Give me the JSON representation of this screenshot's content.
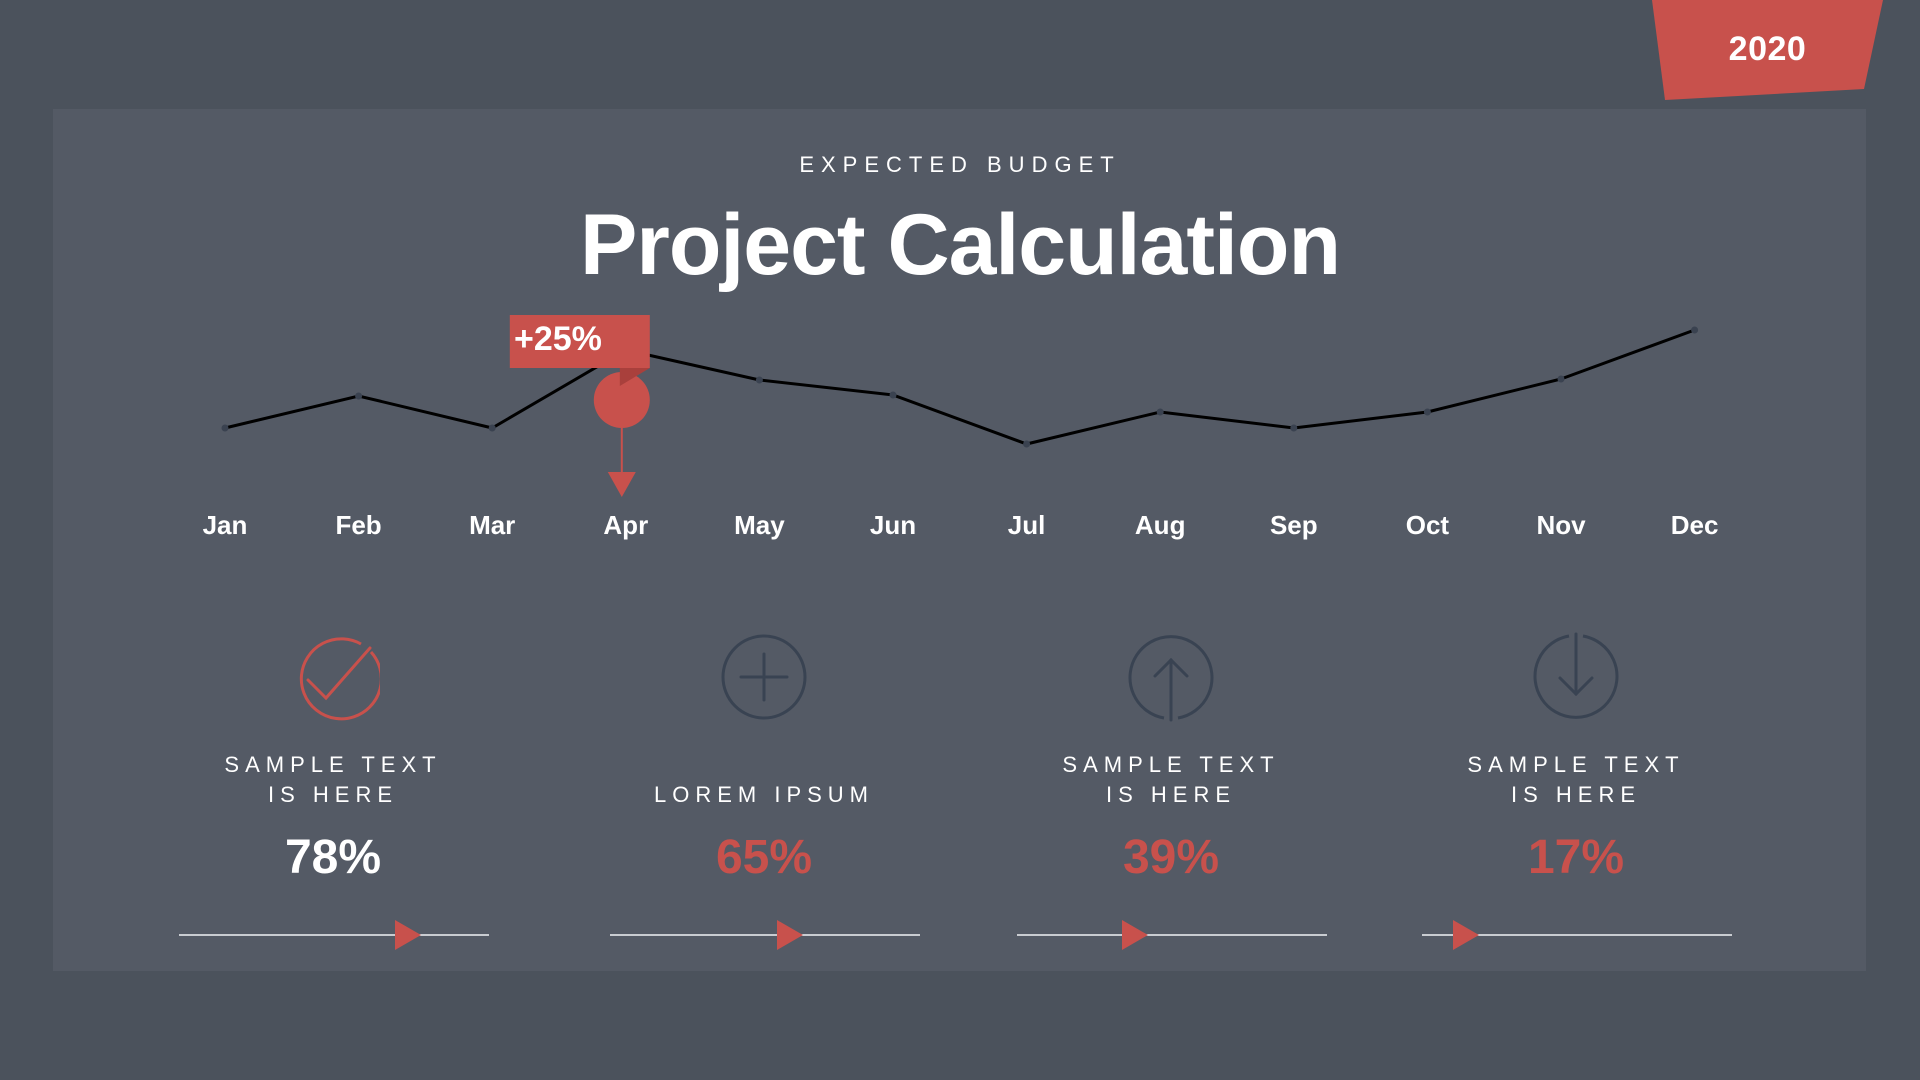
{
  "badge": {
    "year": "2020",
    "color": "#c8514c"
  },
  "header": {
    "subtitle": "EXPECTED BUDGET",
    "title": "Project Calculation"
  },
  "colors": {
    "background": "#4b525c",
    "panel": "#545a65",
    "accent": "#c8514c",
    "icon_stroke": "#394352",
    "line": "#000000",
    "text": "#ffffff"
  },
  "highlight": {
    "month": "Apr",
    "label": "+25%"
  },
  "months": [
    "Jan",
    "Feb",
    "Mar",
    "Apr",
    "May",
    "Jun",
    "Jul",
    "Aug",
    "Sep",
    "Oct",
    "Nov",
    "Dec"
  ],
  "cards": [
    {
      "icon": "check-circle-icon",
      "label_line1": "SAMPLE TEXT",
      "label_line2": "IS HERE",
      "value": "78%",
      "value_color": "#ffffff",
      "progress": 78,
      "icon_color": "#c8514c"
    },
    {
      "icon": "plus-circle-icon",
      "label_line1": "LOREM IPSUM",
      "label_line2": "",
      "value": "65%",
      "value_color": "#c8514c",
      "progress": 65,
      "icon_color": "#394352"
    },
    {
      "icon": "arrow-up-circle-icon",
      "label_line1": "SAMPLE TEXT",
      "label_line2": "IS HERE",
      "value": "39%",
      "value_color": "#c8514c",
      "progress": 39,
      "icon_color": "#394352"
    },
    {
      "icon": "arrow-down-circle-icon",
      "label_line1": "SAMPLE TEXT",
      "label_line2": "IS HERE",
      "value": "17%",
      "value_color": "#c8514c",
      "progress": 17,
      "icon_color": "#394352"
    }
  ],
  "chart_data": {
    "type": "line",
    "title": "Project Calculation",
    "subtitle": "EXPECTED BUDGET",
    "categories": [
      "Jan",
      "Feb",
      "Mar",
      "Apr",
      "May",
      "Jun",
      "Jul",
      "Aug",
      "Sep",
      "Oct",
      "Nov",
      "Dec"
    ],
    "values": [
      42,
      74,
      42,
      120,
      90,
      75,
      26,
      58,
      42,
      58,
      91,
      140
    ],
    "xlabel": "",
    "ylabel": "",
    "grid": false,
    "y_axis_visible": false,
    "annotations": [
      {
        "category": "Apr",
        "text": "+25%"
      }
    ],
    "note": "No y-axis shown; values are relative heights estimated from pixel positions"
  }
}
